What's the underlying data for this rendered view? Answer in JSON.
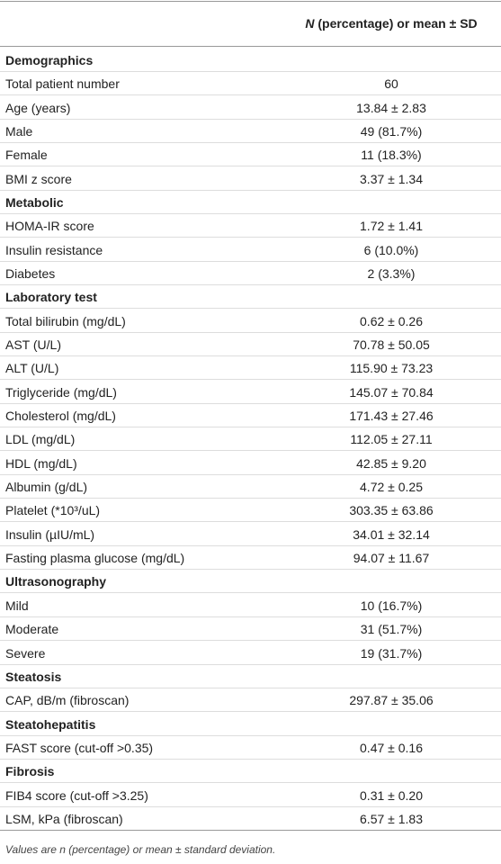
{
  "header": {
    "italic": "N",
    "text": "(percentage) or mean ± SD"
  },
  "sections": [
    {
      "title": "Demographics",
      "rows": [
        [
          "Total patient number",
          "60"
        ],
        [
          "Age (years)",
          "13.84 ± 2.83"
        ],
        [
          "Male",
          "49 (81.7%)"
        ],
        [
          "Female",
          "11 (18.3%)"
        ],
        [
          "BMI z score",
          "3.37 ± 1.34"
        ]
      ]
    },
    {
      "title": "Metabolic",
      "rows": [
        [
          "HOMA-IR score",
          "1.72 ± 1.41"
        ],
        [
          "Insulin resistance",
          "6 (10.0%)"
        ],
        [
          "Diabetes",
          "2 (3.3%)"
        ]
      ]
    },
    {
      "title": "Laboratory test",
      "rows": [
        [
          "Total bilirubin (mg/dL)",
          "0.62 ± 0.26"
        ],
        [
          "AST (U/L)",
          "70.78 ± 50.05"
        ],
        [
          "ALT (U/L)",
          "115.90 ± 73.23"
        ],
        [
          "Triglyceride (mg/dL)",
          "145.07 ± 70.84"
        ],
        [
          "Cholesterol (mg/dL)",
          "171.43 ± 27.46"
        ],
        [
          "LDL (mg/dL)",
          "112.05 ± 27.11"
        ],
        [
          "HDL (mg/dL)",
          "42.85 ± 9.20"
        ],
        [
          "Albumin (g/dL)",
          "4.72 ± 0.25"
        ],
        [
          "Platelet (*10³/uL)",
          "303.35 ± 63.86"
        ],
        [
          "Insulin (µIU/mL)",
          "34.01 ± 32.14"
        ],
        [
          "Fasting plasma glucose (mg/dL)",
          "94.07 ± 11.67"
        ]
      ]
    },
    {
      "title": "Ultrasonography",
      "rows": [
        [
          "Mild",
          "10 (16.7%)"
        ],
        [
          "Moderate",
          "31 (51.7%)"
        ],
        [
          "Severe",
          "19 (31.7%)"
        ]
      ]
    },
    {
      "title": "Steatosis",
      "rows": [
        [
          "CAP, dB/m (fibroscan)",
          "297.87 ± 35.06"
        ]
      ]
    },
    {
      "title": "Steatohepatitis",
      "rows": [
        [
          "FAST score (cut-off >0.35)",
          "0.47 ± 0.16"
        ]
      ]
    },
    {
      "title": "Fibrosis",
      "rows": [
        [
          "FIB4 score (cut-off >3.25)",
          "0.31 ± 0.20"
        ],
        [
          "LSM, kPa (fibroscan)",
          "6.57 ± 1.83"
        ]
      ]
    }
  ],
  "footnote": "Values are n (percentage) or mean ± standard deviation."
}
